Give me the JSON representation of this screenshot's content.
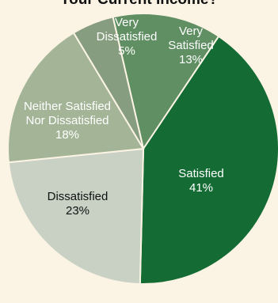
{
  "chart_data": {
    "type": "pie",
    "title": "Your Current Income?",
    "categories": [
      "Very Satisfied",
      "Satisfied",
      "Dissatisfied",
      "Neither Satisfied Nor Dissatisfied",
      "Very Dissatisfied"
    ],
    "values": [
      13,
      41,
      23,
      18,
      5
    ],
    "slices": [
      {
        "name": "Very Satisfied",
        "label_lines": [
          "Very",
          "Satisfied",
          "13%"
        ],
        "value": 13,
        "color": "#5f8f62",
        "text_color": "#ffffff"
      },
      {
        "name": "Satisfied",
        "label_lines": [
          "Satisfied",
          "41%"
        ],
        "value": 41,
        "color": "#146c34",
        "text_color": "#ffffff"
      },
      {
        "name": "Dissatisfied",
        "label_lines": [
          "Dissatisfied",
          "23%"
        ],
        "value": 23,
        "color": "#c8d1c4",
        "text_color": "#111111"
      },
      {
        "name": "Neither Satisfied Nor Dissatisfied",
        "label_lines": [
          "Neither Satisfied",
          "Nor Dissatisfied",
          "18%"
        ],
        "value": 18,
        "color": "#a4b597",
        "text_color": "#ffffff"
      },
      {
        "name": "Very Dissatisfied",
        "label_lines": [
          "Very",
          "Dissatisfied",
          "5%"
        ],
        "value": 5,
        "color": "#879d80",
        "text_color": "#ffffff"
      }
    ],
    "start_angle_deg": -13,
    "direction": "clockwise",
    "legend": "none"
  }
}
